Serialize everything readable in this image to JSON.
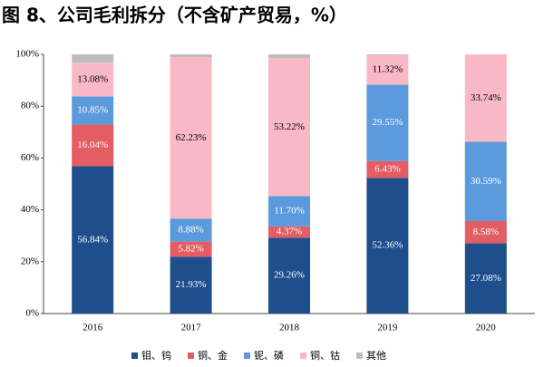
{
  "chart_data": {
    "type": "stacked_bar",
    "title": "图 8、公司毛利拆分（不含矿产贸易，%）",
    "categories": [
      "2016",
      "2017",
      "2018",
      "2019",
      "2020"
    ],
    "series": [
      {
        "name": "钼、钨",
        "color": "#1f4e8c",
        "values": [
          56.84,
          21.93,
          29.26,
          52.36,
          27.08
        ],
        "value_labels": [
          "56.84%",
          "21.93%",
          "29.26%",
          "52.36%",
          "27.08%"
        ]
      },
      {
        "name": "铜、金",
        "color": "#e35d63",
        "values": [
          16.04,
          5.82,
          4.37,
          6.43,
          8.58
        ],
        "value_labels": [
          "16.04%",
          "5.82%",
          "4.37%",
          "6.43%",
          "8.58%"
        ]
      },
      {
        "name": "铌、磷",
        "color": "#5b9bdd",
        "values": [
          10.85,
          8.88,
          11.7,
          29.55,
          30.59
        ],
        "value_labels": [
          "10.85%",
          "8.88%",
          "11.70%",
          "29.55%",
          "30.59%"
        ]
      },
      {
        "name": "铜、钴",
        "color": "#f9b8c6",
        "values": [
          13.08,
          62.23,
          53.22,
          11.32,
          33.74
        ],
        "value_labels": [
          "13.08%",
          "62.23%",
          "53.22%",
          "11.32%",
          "33.74%"
        ]
      },
      {
        "name": "其他",
        "color": "#bdbdbd",
        "values": [
          3.19,
          1.14,
          1.45,
          0.34,
          0.01
        ]
      }
    ],
    "ylim": [
      0,
      100
    ],
    "yticks": [
      {
        "value": 0,
        "label": "0%"
      },
      {
        "value": 20,
        "label": "20%"
      },
      {
        "value": 40,
        "label": "40%"
      },
      {
        "value": 60,
        "label": "60%"
      },
      {
        "value": 80,
        "label": "80%"
      },
      {
        "value": 100,
        "label": "100%"
      }
    ]
  }
}
